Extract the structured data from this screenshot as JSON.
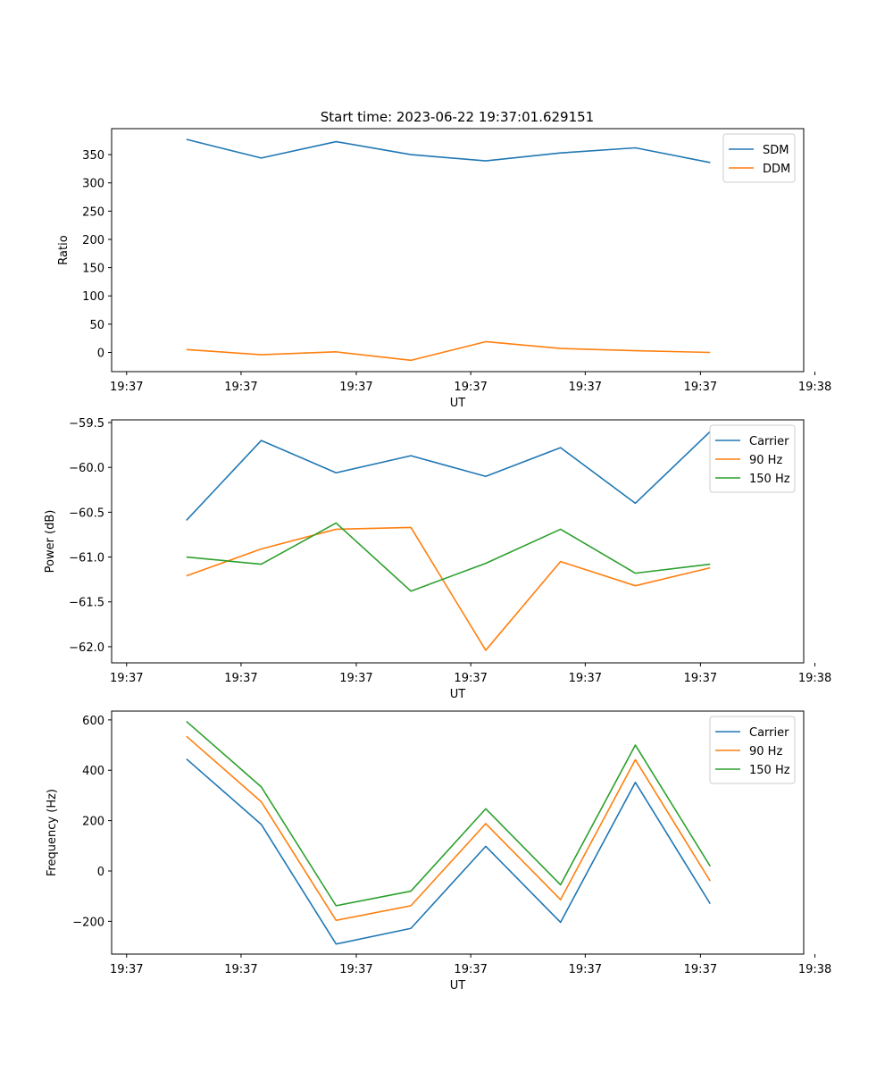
{
  "figure_title": "Start time: 2023-06-22 19:37:01.629151",
  "chart_data": [
    {
      "type": "line",
      "xlabel": "UT",
      "ylabel": "Ratio",
      "xlim": [
        0,
        9.25
      ],
      "ylim": [
        -34,
        396
      ],
      "xticks": [
        {
          "value": 0.2,
          "label": "19:37"
        },
        {
          "value": 1.73,
          "label": "19:37"
        },
        {
          "value": 3.27,
          "label": "19:37"
        },
        {
          "value": 4.8,
          "label": "19:37"
        },
        {
          "value": 6.33,
          "label": "19:37"
        },
        {
          "value": 7.87,
          "label": "19:37"
        },
        {
          "value": 9.4,
          "label": "19:38"
        }
      ],
      "yticks": [
        {
          "value": 0,
          "label": "0"
        },
        {
          "value": 50,
          "label": "50"
        },
        {
          "value": 100,
          "label": "100"
        },
        {
          "value": 150,
          "label": "150"
        },
        {
          "value": 200,
          "label": "200"
        },
        {
          "value": 250,
          "label": "250"
        },
        {
          "value": 300,
          "label": "300"
        },
        {
          "value": 350,
          "label": "350"
        }
      ],
      "legend_position": "top-right",
      "x": [
        1,
        2,
        3,
        4,
        5,
        6,
        7,
        8
      ],
      "series": [
        {
          "name": "SDM",
          "color": "#1f77b4",
          "values": [
            377,
            344,
            373,
            350,
            339,
            353,
            362,
            336
          ]
        },
        {
          "name": "DDM",
          "color": "#ff7f0e",
          "values": [
            5,
            -4,
            1,
            -14,
            19,
            7,
            3,
            0
          ]
        }
      ]
    },
    {
      "type": "line",
      "xlabel": "UT",
      "ylabel": "Power (dB)",
      "xlim": [
        0,
        9.25
      ],
      "ylim": [
        -62.18,
        -59.47
      ],
      "xticks": [
        {
          "value": 0.2,
          "label": "19:37"
        },
        {
          "value": 1.73,
          "label": "19:37"
        },
        {
          "value": 3.27,
          "label": "19:37"
        },
        {
          "value": 4.8,
          "label": "19:37"
        },
        {
          "value": 6.33,
          "label": "19:37"
        },
        {
          "value": 7.87,
          "label": "19:37"
        },
        {
          "value": 9.4,
          "label": "19:38"
        }
      ],
      "yticks": [
        {
          "value": -62.0,
          "label": "−62.0"
        },
        {
          "value": -61.5,
          "label": "−61.5"
        },
        {
          "value": -61.0,
          "label": "−61.0"
        },
        {
          "value": -60.5,
          "label": "−60.5"
        },
        {
          "value": -60.0,
          "label": "−60.0"
        },
        {
          "value": -59.5,
          "label": "−59.5"
        }
      ],
      "legend_position": "top-right",
      "x": [
        1,
        2,
        3,
        4,
        5,
        6,
        7,
        8
      ],
      "series": [
        {
          "name": "Carrier",
          "color": "#1f77b4",
          "values": [
            -60.59,
            -59.7,
            -60.06,
            -59.87,
            -60.1,
            -59.78,
            -60.4,
            -59.6
          ]
        },
        {
          "name": "90 Hz",
          "color": "#ff7f0e",
          "values": [
            -61.21,
            -60.91,
            -60.69,
            -60.67,
            -62.04,
            -61.05,
            -61.32,
            -61.12
          ]
        },
        {
          "name": "150 Hz",
          "color": "#2ca02c",
          "values": [
            -61.0,
            -61.08,
            -60.62,
            -61.38,
            -61.07,
            -60.69,
            -61.18,
            -61.08
          ]
        }
      ]
    },
    {
      "type": "line",
      "xlabel": "UT",
      "ylabel": "Frequency (Hz)",
      "xlim": [
        0,
        9.25
      ],
      "ylim": [
        -330,
        635
      ],
      "xticks": [
        {
          "value": 0.2,
          "label": "19:37"
        },
        {
          "value": 1.73,
          "label": "19:37"
        },
        {
          "value": 3.27,
          "label": "19:37"
        },
        {
          "value": 4.8,
          "label": "19:37"
        },
        {
          "value": 6.33,
          "label": "19:37"
        },
        {
          "value": 7.87,
          "label": "19:37"
        },
        {
          "value": 9.4,
          "label": "19:38"
        }
      ],
      "yticks": [
        {
          "value": -200,
          "label": "−200"
        },
        {
          "value": 0,
          "label": "0"
        },
        {
          "value": 200,
          "label": "200"
        },
        {
          "value": 400,
          "label": "400"
        },
        {
          "value": 600,
          "label": "600"
        }
      ],
      "legend_position": "top-right",
      "x": [
        1,
        2,
        3,
        4,
        5,
        6,
        7,
        8
      ],
      "series": [
        {
          "name": "Carrier",
          "color": "#1f77b4",
          "values": [
            445,
            185,
            -290,
            -228,
            98,
            -204,
            352,
            -130
          ]
        },
        {
          "name": "90 Hz",
          "color": "#ff7f0e",
          "values": [
            535,
            275,
            -196,
            -138,
            188,
            -114,
            442,
            -40
          ]
        },
        {
          "name": "150 Hz",
          "color": "#2ca02c",
          "values": [
            594,
            334,
            -138,
            -80,
            247,
            -55,
            500,
            19
          ]
        }
      ]
    }
  ]
}
